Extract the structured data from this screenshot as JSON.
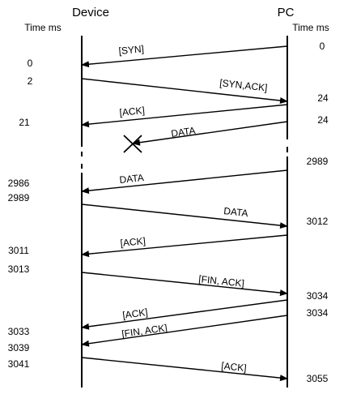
{
  "header": {
    "device_title": "Device",
    "pc_title": "PC",
    "device_time_label": "Time ms",
    "pc_time_label": "Time ms"
  },
  "messages": [
    {
      "label": "[SYN]",
      "direction": "pc-to-device",
      "pc_time": "0",
      "device_time": "0"
    },
    {
      "label": "[SYN,ACK]",
      "direction": "device-to-pc",
      "device_time": "2",
      "pc_time": "24"
    },
    {
      "label": "[ACK]",
      "direction": "pc-to-device",
      "pc_time": "24",
      "device_time": "21"
    },
    {
      "label": "DATA",
      "direction": "pc-to-device",
      "pc_time": "24",
      "device_time": "",
      "lost": true
    },
    {
      "label": "DATA",
      "direction": "pc-to-device",
      "pc_time": "2989",
      "device_time": "2986"
    },
    {
      "label": "DATA",
      "direction": "device-to-pc",
      "device_time": "2989",
      "pc_time": "3012"
    },
    {
      "label": "[ACK]",
      "direction": "pc-to-device",
      "pc_time": "3012",
      "device_time": "3011"
    },
    {
      "label": "[FIN, ACK]",
      "direction": "device-to-pc",
      "device_time": "3013",
      "pc_time": "3034"
    },
    {
      "label": "[ACK]",
      "direction": "pc-to-device",
      "pc_time": "3034",
      "device_time": "3033"
    },
    {
      "label": "[FIN, ACK]",
      "direction": "pc-to-device",
      "pc_time": "3034",
      "device_time": "3039"
    },
    {
      "label": "[ACK]",
      "direction": "device-to-pc",
      "device_time": "3041",
      "pc_time": "3055"
    }
  ]
}
